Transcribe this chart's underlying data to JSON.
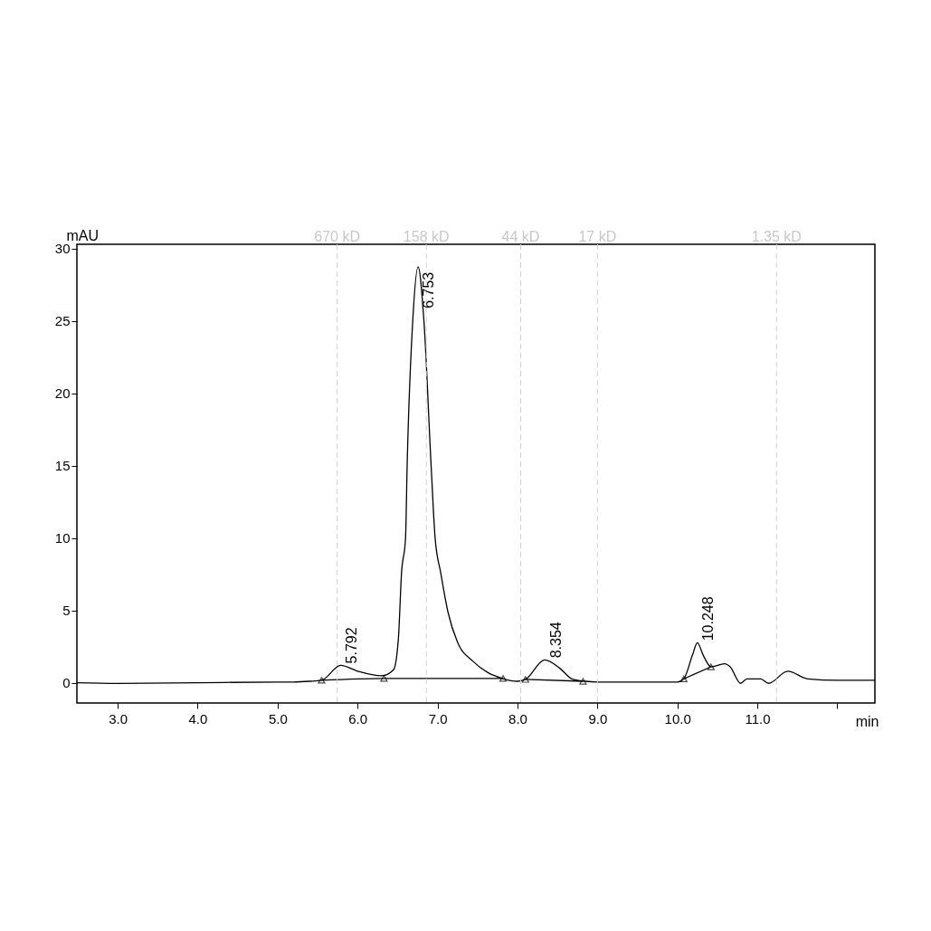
{
  "chart_data": {
    "type": "line",
    "xlabel": "min",
    "ylabel": "mAU",
    "xlim": [
      2.49,
      12.47
    ],
    "ylim": [
      -1.4,
      30.3
    ],
    "xticks": [
      {
        "value": 3,
        "label": "3.0"
      },
      {
        "value": 4,
        "label": "4.0"
      },
      {
        "value": 5,
        "label": "5.0"
      },
      {
        "value": 6,
        "label": "6.0"
      },
      {
        "value": 7,
        "label": "7.0"
      },
      {
        "value": 8,
        "label": "8.0"
      },
      {
        "value": 9,
        "label": "9.0"
      },
      {
        "value": 10,
        "label": "10.0"
      },
      {
        "value": 11,
        "label": "11.0"
      },
      {
        "value": 12,
        "label": null
      }
    ],
    "yticks": [
      0,
      5,
      10,
      15,
      20,
      25,
      30
    ],
    "grid": false,
    "line_style": "solid",
    "series": [
      {
        "color": "#000000",
        "x": [
          2.49,
          3.0,
          4.0,
          5.0,
          5.2,
          5.4,
          5.55,
          5.79,
          6.0,
          6.3,
          6.45,
          6.51,
          6.55,
          6.6,
          6.62,
          6.69,
          6.757,
          6.83,
          6.92,
          6.97,
          7.04,
          7.13,
          7.25,
          7.44,
          7.63,
          7.81,
          8.0,
          8.1,
          8.34,
          8.53,
          8.68,
          8.85,
          9.0,
          10.0,
          10.08,
          10.19,
          10.25,
          10.32,
          10.42,
          10.59,
          10.66,
          10.79,
          10.87,
          11.04,
          11.14,
          11.38,
          11.63,
          12.0,
          12.47
        ],
        "values": [
          0.0,
          -0.05,
          0.0,
          0.05,
          0.05,
          0.1,
          0.17,
          1.2,
          0.8,
          0.48,
          0.9,
          3.0,
          7.6,
          10.0,
          15.0,
          25.0,
          28.75,
          25.0,
          15.0,
          10.0,
          7.6,
          4.9,
          2.8,
          1.5,
          0.7,
          0.3,
          0.1,
          0.23,
          1.58,
          1.0,
          0.27,
          0.1,
          0.05,
          0.05,
          0.27,
          1.94,
          2.77,
          1.94,
          1.1,
          1.31,
          1.1,
          -0.04,
          0.27,
          0.27,
          -0.04,
          0.79,
          0.27,
          0.17,
          0.17
        ]
      },
      {
        "color": "#000000",
        "x": [
          5.55,
          6.33,
          7.82
        ],
        "values": [
          0.17,
          0.3,
          0.3
        ]
      },
      {
        "color": "#000000",
        "x": [
          8.1,
          8.82
        ],
        "values": [
          0.23,
          0.1
        ]
      },
      {
        "color": "#000000",
        "x": [
          10.08,
          10.42
        ],
        "values": [
          0.27,
          1.1
        ]
      },
      {
        "type": "scatter",
        "marker": "triangle",
        "color": "#000000",
        "x": [
          5.55,
          6.33,
          7.82,
          8.1,
          8.82,
          10.08,
          10.42
        ],
        "values": [
          0.17,
          0.3,
          0.3,
          0.23,
          0.1,
          0.27,
          1.1
        ]
      }
    ],
    "ref_lines": [
      {
        "axis": "x",
        "value": 5.745,
        "label": "670 kD",
        "color": "#d0d0d0",
        "line_style": "dashed"
      },
      {
        "axis": "x",
        "value": 6.86,
        "label": "158 kD",
        "color": "#d0d0d0",
        "line_style": "dashed"
      },
      {
        "axis": "x",
        "value": 8.04,
        "label": "44 kD",
        "color": "#d0d0d0",
        "line_style": "dashed"
      },
      {
        "axis": "x",
        "value": 9.0,
        "label": "17 kD",
        "color": "#d0d0d0",
        "line_style": "dashed"
      },
      {
        "axis": "x",
        "value": 11.24,
        "label": "1.35 kD",
        "color": "#d0d0d0",
        "line_style": "dashed"
      }
    ],
    "annotations": [
      {
        "text": "5.792",
        "x": 5.792,
        "y": 1.2
      },
      {
        "text": "6.753",
        "x": 6.753,
        "y": 28.75
      },
      {
        "text": "8.354",
        "x": 8.354,
        "y": 1.58
      },
      {
        "text": "10.248",
        "x": 10.248,
        "y": 2.77
      }
    ]
  }
}
